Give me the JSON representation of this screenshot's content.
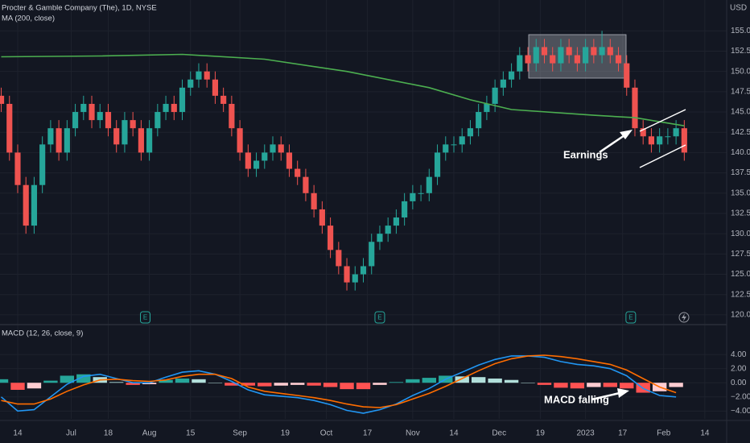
{
  "chart_data": [
    {
      "type": "candlestick",
      "title": "Procter & Gamble Company (The), 1D, NYSE",
      "currency": "USD",
      "up_color": "#26a69a",
      "down_color": "#ef5350",
      "x": [
        -4,
        -2,
        0,
        2,
        4,
        6,
        8,
        10,
        12,
        14,
        16,
        18,
        20,
        22,
        24,
        26,
        28,
        30,
        32,
        34,
        36,
        38,
        40,
        42,
        44,
        46,
        48,
        50,
        52,
        54,
        56,
        58,
        60,
        62,
        64,
        66,
        68,
        70,
        72,
        74,
        76,
        78,
        80,
        82,
        84,
        86,
        88,
        90,
        92,
        94,
        96,
        98,
        100,
        102,
        104,
        106,
        108,
        110,
        112,
        114,
        116,
        118,
        120,
        122,
        124,
        126,
        128,
        130,
        132,
        134,
        136,
        138,
        140,
        142,
        144,
        146,
        148,
        150,
        152,
        154,
        156,
        158,
        160,
        162
      ],
      "ohlc": [
        [
          147,
          148,
          145,
          146
        ],
        [
          146,
          147,
          139,
          140
        ],
        [
          140,
          141,
          135,
          136
        ],
        [
          136,
          137,
          130,
          131
        ],
        [
          131,
          137,
          130,
          136
        ],
        [
          136,
          142,
          135,
          141
        ],
        [
          141,
          144,
          140,
          143
        ],
        [
          143,
          144,
          139,
          140
        ],
        [
          140,
          144,
          139,
          143
        ],
        [
          143,
          146,
          142,
          145
        ],
        [
          145,
          147,
          144,
          146
        ],
        [
          146,
          147,
          143,
          144
        ],
        [
          144,
          146,
          143,
          145
        ],
        [
          145,
          146,
          142,
          143
        ],
        [
          143,
          144,
          140,
          141
        ],
        [
          141,
          145,
          140,
          144
        ],
        [
          144,
          145,
          142,
          143
        ],
        [
          143,
          144,
          139,
          140
        ],
        [
          140,
          144,
          139,
          143
        ],
        [
          143,
          146,
          142,
          145
        ],
        [
          145,
          147,
          144,
          146
        ],
        [
          146,
          147,
          144,
          145
        ],
        [
          145,
          149,
          144,
          148
        ],
        [
          148,
          150,
          147,
          149
        ],
        [
          149,
          151,
          148,
          150
        ],
        [
          150,
          151,
          148,
          149
        ],
        [
          149,
          150,
          146,
          147
        ],
        [
          147,
          148,
          145,
          146
        ],
        [
          146,
          147,
          142,
          143
        ],
        [
          143,
          144,
          139,
          140
        ],
        [
          140,
          141,
          137,
          138
        ],
        [
          138,
          140,
          137,
          139
        ],
        [
          139,
          141,
          138,
          140
        ],
        [
          140,
          142,
          139,
          141
        ],
        [
          141,
          142,
          139,
          140
        ],
        [
          140,
          141,
          137,
          138
        ],
        [
          138,
          139,
          136,
          137
        ],
        [
          137,
          138,
          134,
          135
        ],
        [
          135,
          136,
          132,
          133
        ],
        [
          133,
          134,
          130,
          131
        ],
        [
          131,
          132,
          127,
          128
        ],
        [
          128,
          129,
          125,
          126
        ],
        [
          126,
          127,
          123,
          124
        ],
        [
          124,
          126,
          123,
          125
        ],
        [
          125,
          127,
          124,
          126
        ],
        [
          126,
          130,
          125,
          129
        ],
        [
          129,
          131,
          128,
          130
        ],
        [
          130,
          132,
          129,
          131
        ],
        [
          131,
          133,
          130,
          132
        ],
        [
          132,
          135,
          131,
          134
        ],
        [
          134,
          136,
          133,
          135
        ],
        [
          135,
          136,
          134,
          135
        ],
        [
          135,
          138,
          134,
          137
        ],
        [
          137,
          141,
          136,
          140
        ],
        [
          140,
          142,
          139,
          141
        ],
        [
          141,
          142,
          140,
          141
        ],
        [
          141,
          143,
          140,
          142
        ],
        [
          142,
          144,
          141,
          143
        ],
        [
          143,
          146,
          142,
          145
        ],
        [
          145,
          147,
          144,
          146
        ],
        [
          146,
          149,
          145,
          148
        ],
        [
          148,
          150,
          147,
          149
        ],
        [
          149,
          151,
          148,
          150
        ],
        [
          150,
          153,
          149,
          152
        ],
        [
          152,
          153,
          150,
          151
        ],
        [
          151,
          154,
          150,
          153
        ],
        [
          153,
          154,
          151,
          152
        ],
        [
          152,
          153,
          150,
          151
        ],
        [
          151,
          154,
          150,
          153
        ],
        [
          153,
          154,
          151,
          152
        ],
        [
          152,
          153,
          150,
          151
        ],
        [
          151,
          154,
          150,
          153
        ],
        [
          153,
          154,
          151,
          152
        ],
        [
          152,
          155,
          151,
          153
        ],
        [
          153,
          154,
          151,
          152
        ],
        [
          152,
          153,
          150,
          151
        ],
        [
          151,
          152,
          147,
          148
        ],
        [
          148,
          149,
          142,
          143
        ],
        [
          143,
          144,
          141,
          142
        ],
        [
          142,
          143,
          140,
          141
        ],
        [
          141,
          143,
          140,
          142
        ],
        [
          142,
          143,
          141,
          142
        ],
        [
          142,
          144,
          141,
          143
        ],
        [
          143,
          144,
          139,
          140
        ]
      ],
      "series": [
        {
          "name": "MA (200, close)",
          "color": "#4caf50",
          "x": [
            -4,
            20,
            40,
            60,
            80,
            100,
            110,
            120,
            140,
            150,
            162
          ],
          "values": [
            151.8,
            151.9,
            152.1,
            151.5,
            150,
            148,
            146.5,
            145.3,
            144.6,
            144.3,
            143.3
          ]
        }
      ],
      "xlim": [
        -4.3,
        172.3
      ],
      "ylim": [
        118.9,
        158.8
      ],
      "yticks": [
        {
          "value": 120,
          "label": "120.00"
        },
        {
          "value": 122.5,
          "label": "122.50"
        },
        {
          "value": 125,
          "label": "125.00"
        },
        {
          "value": 127.5,
          "label": "127.50"
        },
        {
          "value": 130,
          "label": "130.00"
        },
        {
          "value": 132.5,
          "label": "132.50"
        },
        {
          "value": 135,
          "label": "135.00"
        },
        {
          "value": 137.5,
          "label": "137.50"
        },
        {
          "value": 140,
          "label": "140.00"
        },
        {
          "value": 142.5,
          "label": "142.50"
        },
        {
          "value": 145,
          "label": "145.00"
        },
        {
          "value": 147.5,
          "label": "147.50"
        },
        {
          "value": 150,
          "label": "150.00"
        },
        {
          "value": 152.5,
          "label": "152.50"
        },
        {
          "value": 155,
          "label": "155.00"
        }
      ],
      "earnings_markers": {
        "label": "E",
        "x": [
          31,
          88,
          149
        ]
      },
      "annotations": [
        "Earnings"
      ]
    },
    {
      "type": "macd",
      "title": "MACD (12, 26, close, 9)",
      "x": [
        -4,
        0,
        4,
        8,
        12,
        16,
        20,
        24,
        28,
        32,
        36,
        40,
        44,
        48,
        52,
        56,
        60,
        64,
        68,
        72,
        76,
        80,
        84,
        88,
        92,
        96,
        100,
        104,
        108,
        112,
        116,
        120,
        124,
        128,
        132,
        136,
        140,
        144,
        148,
        152,
        156,
        160
      ],
      "series": [
        {
          "name": "MACD",
          "color": "#2196f3",
          "values": [
            -2.0,
            -4.0,
            -3.8,
            -2.0,
            -0.2,
            0.9,
            1.2,
            0.6,
            0.0,
            0.0,
            0.8,
            1.5,
            1.7,
            1.2,
            0.2,
            -1.0,
            -1.7,
            -1.9,
            -2.1,
            -2.5,
            -3.1,
            -3.9,
            -4.3,
            -3.8,
            -3.0,
            -1.8,
            -0.8,
            0.5,
            1.5,
            2.5,
            3.3,
            3.8,
            3.8,
            3.6,
            3.0,
            2.6,
            2.4,
            2.0,
            1.0,
            -0.8,
            -1.8,
            -2.0
          ]
        },
        {
          "name": "Signal",
          "color": "#ff6d00",
          "values": [
            -2.5,
            -3.0,
            -3.0,
            -2.3,
            -1.2,
            -0.3,
            0.4,
            0.5,
            0.3,
            0.2,
            0.4,
            0.9,
            1.2,
            1.2,
            0.6,
            -0.6,
            -1.2,
            -1.5,
            -1.8,
            -2.1,
            -2.5,
            -3.0,
            -3.4,
            -3.5,
            -3.1,
            -2.3,
            -1.5,
            -0.5,
            0.6,
            1.7,
            2.7,
            3.4,
            3.8,
            3.9,
            3.7,
            3.4,
            3.0,
            2.6,
            1.8,
            0.6,
            -0.6,
            -1.4
          ]
        }
      ],
      "histogram": [
        0.5,
        -1.0,
        -0.8,
        0.3,
        1.0,
        1.2,
        0.8,
        0.1,
        -0.3,
        -0.2,
        0.4,
        0.6,
        0.5,
        0,
        -0.4,
        -0.4,
        -0.5,
        -0.4,
        -0.3,
        -0.4,
        -0.6,
        -0.9,
        -0.9,
        -0.3,
        0.1,
        0.5,
        0.7,
        1.0,
        0.9,
        0.8,
        0.6,
        0.4,
        0,
        -0.3,
        -0.7,
        -0.8,
        -0.6,
        -0.6,
        -0.8,
        -1.4,
        -1.2,
        -0.6
      ],
      "histogram_colors": {
        "up_rising": "#26a69a",
        "up_falling": "#b2dfdb",
        "down_falling": "#ff5252",
        "down_rising": "#ffcdd2"
      },
      "xlim": [
        -4.3,
        172.3
      ],
      "ylim": [
        -5.1,
        8
      ],
      "yticks": [
        {
          "value": 4,
          "label": "4.00"
        },
        {
          "value": 2,
          "label": "2.00"
        },
        {
          "value": 0,
          "label": "0.00"
        },
        {
          "value": -2,
          "label": "−2.00"
        },
        {
          "value": -4,
          "label": "−4.00"
        }
      ],
      "xticks": [
        {
          "value": 0,
          "label": "14"
        },
        {
          "value": 13,
          "label": "Jul"
        },
        {
          "value": 22,
          "label": "18"
        },
        {
          "value": 32,
          "label": "Aug"
        },
        {
          "value": 42,
          "label": "15"
        },
        {
          "value": 54,
          "label": "Sep"
        },
        {
          "value": 65,
          "label": "19"
        },
        {
          "value": 75,
          "label": "Oct"
        },
        {
          "value": 85,
          "label": "17"
        },
        {
          "value": 96,
          "label": "Nov"
        },
        {
          "value": 106,
          "label": "14"
        },
        {
          "value": 117,
          "label": "Dec"
        },
        {
          "value": 127,
          "label": "19"
        },
        {
          "value": 138,
          "label": "2023"
        },
        {
          "value": 147,
          "label": "17"
        },
        {
          "value": 157,
          "label": "Feb"
        },
        {
          "value": 167,
          "label": "14"
        }
      ],
      "annotations": [
        "MACD falling"
      ]
    }
  ]
}
